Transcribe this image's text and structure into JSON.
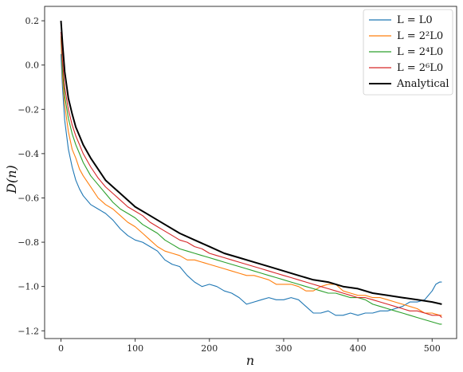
{
  "chart_data": {
    "type": "line",
    "xlabel": "n",
    "ylabel": "D(n)",
    "xlim": [
      -22,
      533
    ],
    "ylim": [
      -1.235,
      0.265
    ],
    "x_ticks": [
      0,
      100,
      200,
      300,
      400,
      500
    ],
    "y_ticks": [
      0.2,
      0.0,
      -0.2,
      -0.4,
      -0.6,
      -0.8,
      -1.0,
      -1.2
    ],
    "x_tick_labels": [
      "0",
      "100",
      "200",
      "300",
      "400",
      "500"
    ],
    "y_tick_labels": [
      "0.2",
      "0.0",
      "−0.2",
      "−0.4",
      "−0.6",
      "−0.8",
      "−1.0",
      "−1.2"
    ],
    "legend_position": "top-right",
    "series": [
      {
        "name": "L = L0",
        "color": "#1f77b4",
        "x": [
          0,
          2,
          5,
          10,
          15,
          20,
          25,
          30,
          40,
          50,
          60,
          70,
          80,
          90,
          100,
          110,
          120,
          130,
          140,
          150,
          160,
          170,
          180,
          190,
          200,
          210,
          220,
          230,
          240,
          250,
          260,
          270,
          280,
          290,
          300,
          310,
          320,
          330,
          340,
          350,
          360,
          370,
          380,
          390,
          400,
          410,
          420,
          430,
          440,
          450,
          460,
          470,
          480,
          490,
          500,
          505,
          510,
          513
        ],
        "y": [
          0.05,
          -0.1,
          -0.25,
          -0.38,
          -0.46,
          -0.52,
          -0.56,
          -0.59,
          -0.63,
          -0.65,
          -0.67,
          -0.7,
          -0.74,
          -0.77,
          -0.79,
          -0.8,
          -0.82,
          -0.84,
          -0.88,
          -0.9,
          -0.91,
          -0.95,
          -0.98,
          -1.0,
          -0.99,
          -1.0,
          -1.02,
          -1.03,
          -1.05,
          -1.08,
          -1.07,
          -1.06,
          -1.05,
          -1.06,
          -1.06,
          -1.05,
          -1.06,
          -1.09,
          -1.12,
          -1.12,
          -1.11,
          -1.13,
          -1.13,
          -1.12,
          -1.13,
          -1.12,
          -1.12,
          -1.11,
          -1.11,
          -1.1,
          -1.09,
          -1.07,
          -1.07,
          -1.06,
          -1.02,
          -0.99,
          -0.98,
          -0.98
        ]
      },
      {
        "name": "L = 2²L0",
        "color": "#ff7f0e",
        "x": [
          0,
          2,
          5,
          10,
          15,
          20,
          25,
          30,
          40,
          50,
          60,
          70,
          80,
          90,
          100,
          110,
          120,
          130,
          140,
          150,
          160,
          170,
          180,
          190,
          200,
          210,
          220,
          230,
          240,
          250,
          260,
          270,
          280,
          290,
          300,
          310,
          320,
          330,
          340,
          350,
          360,
          370,
          380,
          390,
          400,
          410,
          420,
          430,
          440,
          450,
          460,
          470,
          480,
          490,
          500,
          510,
          513
        ],
        "y": [
          0.12,
          -0.05,
          -0.18,
          -0.3,
          -0.38,
          -0.42,
          -0.47,
          -0.5,
          -0.55,
          -0.6,
          -0.63,
          -0.65,
          -0.68,
          -0.71,
          -0.73,
          -0.76,
          -0.79,
          -0.82,
          -0.84,
          -0.85,
          -0.86,
          -0.88,
          -0.88,
          -0.89,
          -0.9,
          -0.91,
          -0.92,
          -0.93,
          -0.94,
          -0.95,
          -0.95,
          -0.96,
          -0.97,
          -0.99,
          -0.99,
          -0.99,
          -1.0,
          -1.02,
          -1.02,
          -1.0,
          -0.99,
          -0.99,
          -1.02,
          -1.03,
          -1.04,
          -1.04,
          -1.05,
          -1.05,
          -1.06,
          -1.07,
          -1.08,
          -1.09,
          -1.1,
          -1.12,
          -1.12,
          -1.13,
          -1.13
        ]
      },
      {
        "name": "L = 2⁴L0",
        "color": "#2ca02c",
        "x": [
          0,
          2,
          5,
          10,
          15,
          20,
          25,
          30,
          40,
          50,
          60,
          70,
          80,
          90,
          100,
          110,
          120,
          130,
          140,
          150,
          160,
          170,
          180,
          190,
          200,
          210,
          220,
          230,
          240,
          250,
          260,
          270,
          280,
          290,
          300,
          310,
          320,
          330,
          340,
          350,
          360,
          370,
          380,
          390,
          400,
          410,
          420,
          430,
          440,
          450,
          460,
          470,
          480,
          490,
          500,
          510,
          513
        ],
        "y": [
          0.13,
          -0.02,
          -0.14,
          -0.24,
          -0.31,
          -0.36,
          -0.4,
          -0.44,
          -0.5,
          -0.54,
          -0.58,
          -0.62,
          -0.65,
          -0.67,
          -0.69,
          -0.72,
          -0.74,
          -0.76,
          -0.79,
          -0.81,
          -0.83,
          -0.84,
          -0.85,
          -0.86,
          -0.87,
          -0.88,
          -0.89,
          -0.9,
          -0.91,
          -0.92,
          -0.93,
          -0.94,
          -0.95,
          -0.96,
          -0.97,
          -0.98,
          -0.99,
          -1.0,
          -1.01,
          -1.02,
          -1.03,
          -1.03,
          -1.04,
          -1.05,
          -1.05,
          -1.06,
          -1.08,
          -1.09,
          -1.1,
          -1.11,
          -1.12,
          -1.13,
          -1.14,
          -1.15,
          -1.16,
          -1.17,
          -1.17
        ]
      },
      {
        "name": "L = 2⁶L0",
        "color": "#d62728",
        "x": [
          0,
          2,
          5,
          10,
          15,
          20,
          25,
          30,
          40,
          50,
          60,
          70,
          80,
          90,
          100,
          110,
          120,
          130,
          140,
          150,
          160,
          170,
          180,
          190,
          200,
          210,
          220,
          230,
          240,
          250,
          260,
          270,
          280,
          290,
          300,
          310,
          320,
          330,
          340,
          350,
          360,
          370,
          380,
          390,
          400,
          410,
          420,
          430,
          440,
          450,
          460,
          470,
          480,
          490,
          500,
          510,
          513
        ],
        "y": [
          0.15,
          0.02,
          -0.1,
          -0.2,
          -0.27,
          -0.32,
          -0.36,
          -0.4,
          -0.46,
          -0.51,
          -0.55,
          -0.58,
          -0.61,
          -0.64,
          -0.66,
          -0.68,
          -0.71,
          -0.73,
          -0.75,
          -0.77,
          -0.79,
          -0.8,
          -0.82,
          -0.83,
          -0.85,
          -0.86,
          -0.87,
          -0.88,
          -0.89,
          -0.9,
          -0.91,
          -0.92,
          -0.93,
          -0.94,
          -0.95,
          -0.96,
          -0.97,
          -0.98,
          -0.99,
          -1.0,
          -1.01,
          -1.02,
          -1.03,
          -1.04,
          -1.05,
          -1.05,
          -1.06,
          -1.07,
          -1.08,
          -1.09,
          -1.1,
          -1.11,
          -1.11,
          -1.12,
          -1.13,
          -1.13,
          -1.14
        ]
      },
      {
        "name": "Analytical",
        "color": "#000000",
        "x": [
          0,
          2,
          5,
          10,
          15,
          20,
          25,
          30,
          40,
          50,
          60,
          70,
          80,
          90,
          100,
          120,
          140,
          160,
          180,
          200,
          220,
          240,
          260,
          280,
          300,
          320,
          340,
          360,
          380,
          400,
          420,
          440,
          460,
          480,
          500,
          513
        ],
        "y": [
          0.2,
          0.1,
          -0.03,
          -0.15,
          -0.22,
          -0.28,
          -0.32,
          -0.36,
          -0.42,
          -0.47,
          -0.52,
          -0.55,
          -0.58,
          -0.61,
          -0.64,
          -0.68,
          -0.72,
          -0.76,
          -0.79,
          -0.82,
          -0.85,
          -0.87,
          -0.89,
          -0.91,
          -0.93,
          -0.95,
          -0.97,
          -0.98,
          -1.0,
          -1.01,
          -1.03,
          -1.04,
          -1.05,
          -1.06,
          -1.07,
          -1.08
        ]
      }
    ]
  }
}
